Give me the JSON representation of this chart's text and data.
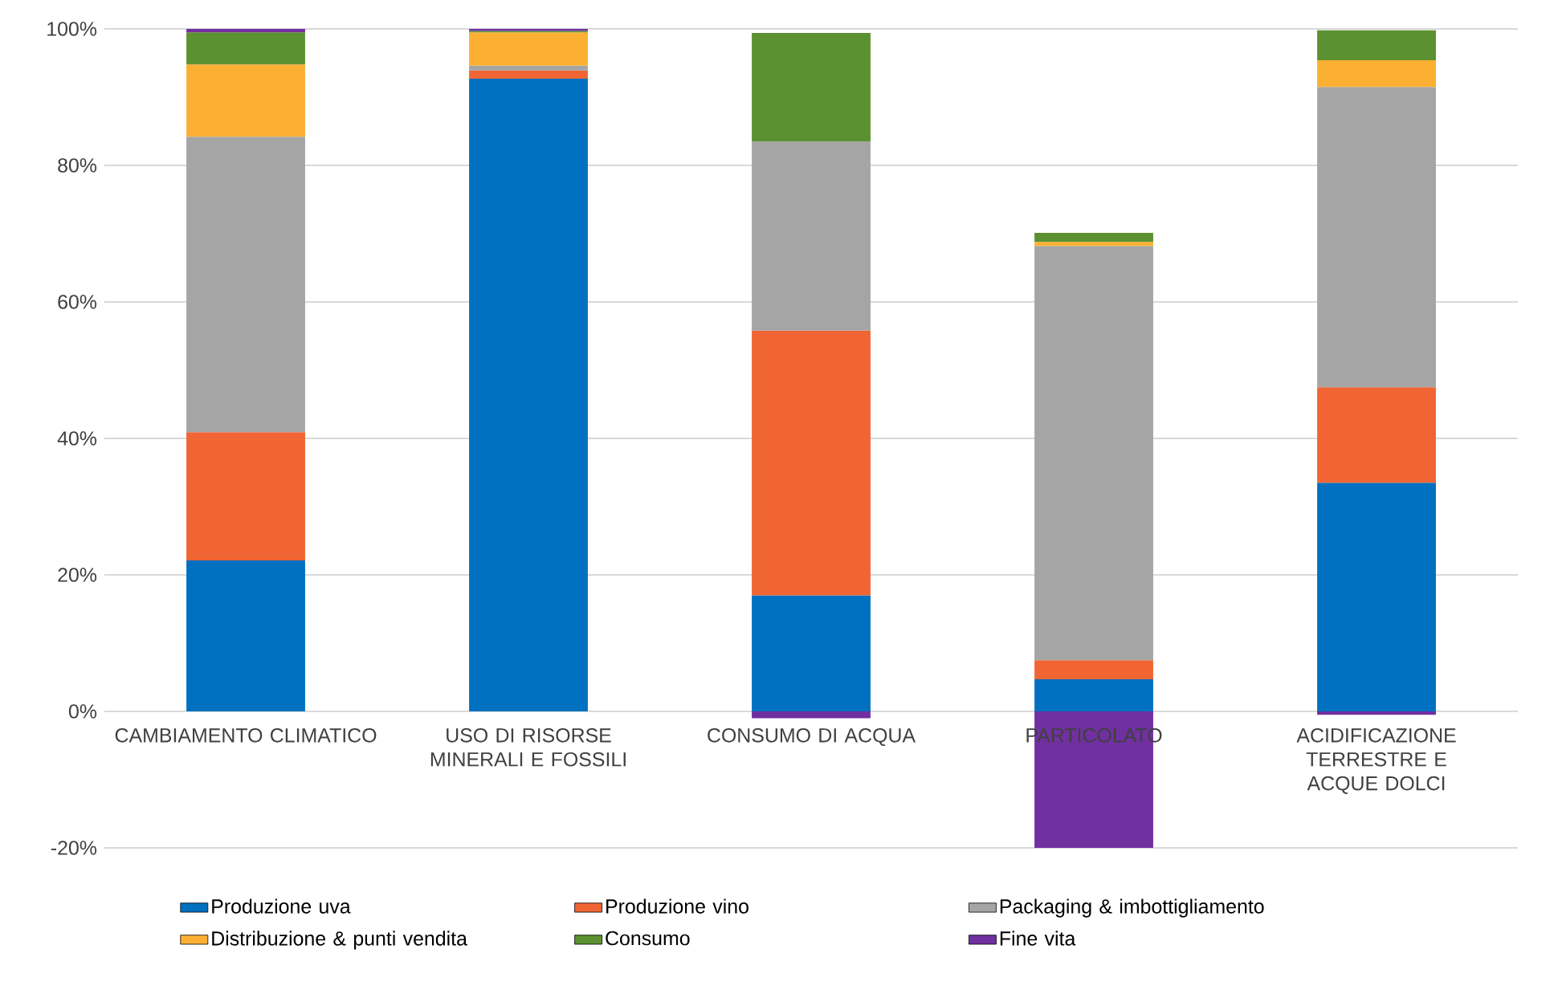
{
  "chart_data": {
    "type": "bar",
    "stacked": true,
    "grid": "y",
    "legend": "bottom",
    "categories": [
      "CAMBIAMENTO CLIMATICO",
      "USO DI RISORSE MINERALI E FOSSILI",
      "CONSUMO DI ACQUA",
      "PARTICOLATO",
      "ACIDIFICAZIONE TERRESTRE E ACQUE DOLCI"
    ],
    "ylim": [
      -20,
      100
    ],
    "yticks": [
      {
        "value": -20,
        "label": "-20%"
      },
      {
        "value": 0,
        "label": "0%"
      },
      {
        "value": 20,
        "label": "20%"
      },
      {
        "value": 40,
        "label": "40%"
      },
      {
        "value": 60,
        "label": "60%"
      },
      {
        "value": 80,
        "label": "80%"
      },
      {
        "value": 100,
        "label": "100%"
      }
    ],
    "series": [
      {
        "name": "Produzione uva",
        "color": "#0070c0",
        "values": [
          22.1,
          92.7,
          17.0,
          4.7,
          33.5
        ]
      },
      {
        "name": "Produzione vino",
        "color": "#f06533",
        "values": [
          18.8,
          1.2,
          38.8,
          2.8,
          14.0
        ]
      },
      {
        "name": "Packaging & imbottigliamento",
        "color": "#a5a5a5",
        "values": [
          43.3,
          0.7,
          27.7,
          60.7,
          44.0
        ]
      },
      {
        "name": "Distribuzione & punti vendita",
        "color": "#fbb034",
        "values": [
          10.6,
          4.9,
          0,
          0.6,
          3.9
        ]
      },
      {
        "name": "Consumo",
        "color": "#5b9131",
        "values": [
          4.7,
          0.2,
          15.9,
          1.3,
          4.4
        ]
      },
      {
        "name": "Fine vita",
        "color": "#7030a0",
        "values": [
          0.7,
          0.5,
          -1.0,
          -20,
          -0.5
        ]
      }
    ]
  }
}
